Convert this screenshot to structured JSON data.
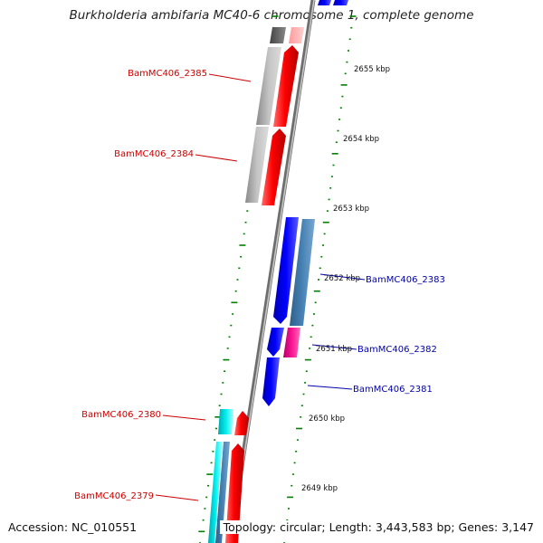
{
  "title": "Burkholderia ambifaria MC40-6 chromosome 1, complete genome",
  "footer": {
    "accession": "Accession: NC_010551",
    "topology": "Topology: circular; Length: 3,443,583 bp; Genes: 3,147"
  },
  "colors": {
    "forward_gene": "#ff0000",
    "reverse_gene": "#0000ff",
    "grey_gene": "#b0b0b0",
    "steel_gene": "#4682b4",
    "cyan_gene": "#00e5ee",
    "magenta_gene": "#ee1493",
    "tick": "#008000",
    "forward_label": "#cc0000",
    "reverse_label": "#0000aa",
    "backbone": "#8a8a8a"
  },
  "tick_labels": [
    "2655 kbp",
    "2654 kbp",
    "2653 kbp",
    "2652 kbp",
    "2651 kbp",
    "2650 kbp",
    "2649 kbp"
  ],
  "gene_labels": {
    "forward": [
      "BamMC406_2385",
      "BamMC406_2384",
      "BamMC406_2380",
      "BamMC406_2379"
    ],
    "reverse": [
      "BamMC406_2383",
      "BamMC406_2382",
      "BamMC406_2381"
    ]
  }
}
